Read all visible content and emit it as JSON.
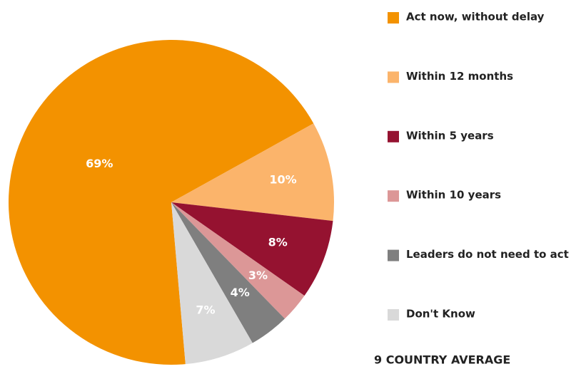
{
  "chart_data": {
    "type": "pie",
    "categories": [
      "Act now, without delay",
      "Within 12 months",
      "Within 5 years",
      "Within 10 years",
      "Leaders do not need to act",
      "Don't Know"
    ],
    "values": [
      69,
      10,
      8,
      3,
      4,
      7
    ],
    "value_labels": [
      "69%",
      "10%",
      "8%",
      "3%",
      "4%",
      "7%"
    ],
    "colors": [
      "#f39200",
      "#fbb46b",
      "#951230",
      "#dc9797",
      "#7f7f7f",
      "#d9d9d9"
    ],
    "footer": "9 COUNTRY AVERAGE"
  }
}
